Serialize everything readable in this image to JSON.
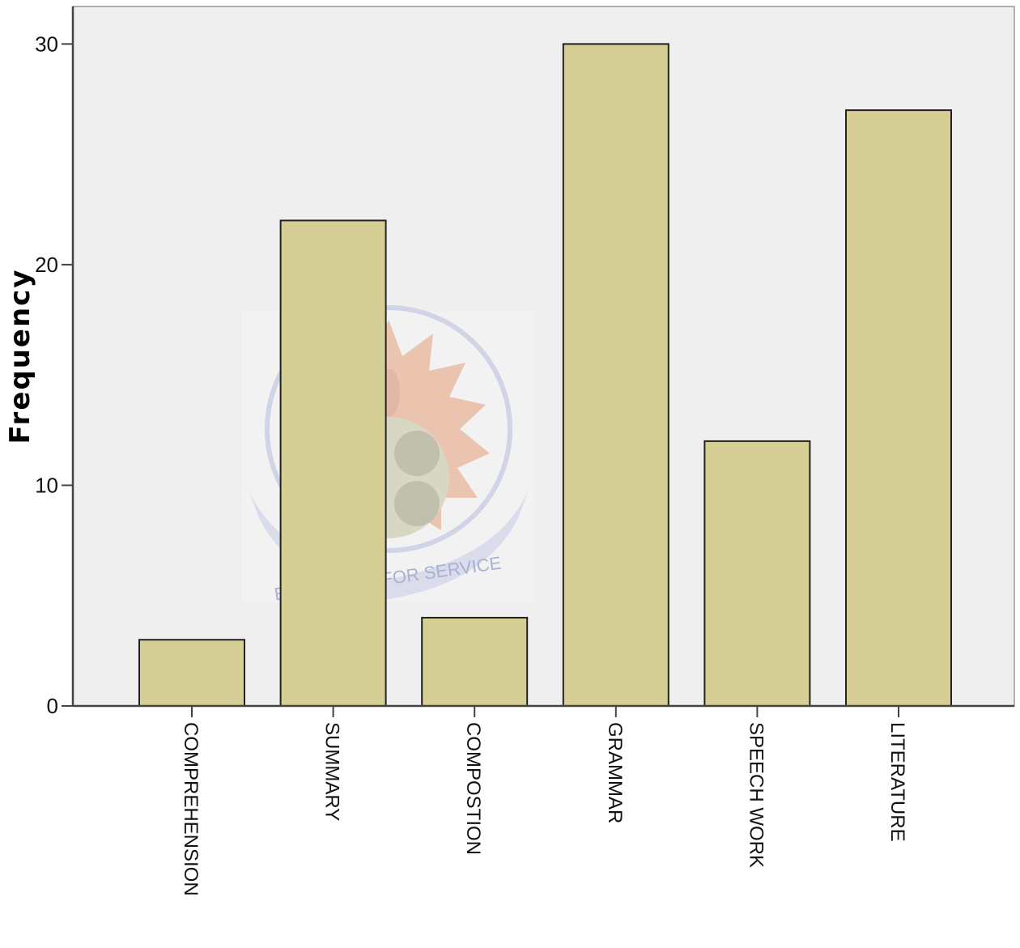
{
  "chart_data": {
    "type": "bar",
    "title": "",
    "xlabel": "",
    "ylabel": "Frequency",
    "categories": [
      "COMPREHENSION",
      "SUMMARY",
      "COMPOSTION",
      "GRAMMAR",
      "SPEECH WORK",
      "LITERATURE"
    ],
    "values": [
      3,
      22,
      4,
      30,
      12,
      27
    ],
    "ylim": [
      0,
      31.7
    ],
    "yticks": [
      0,
      10,
      20,
      30
    ],
    "grid": false,
    "legend": "none",
    "colors": {
      "bar_fill": "#d5cf96",
      "bar_stroke": "#222222",
      "plot_background": "#efefef",
      "axis": "#444444"
    }
  },
  "watermark": {
    "icon": "university-seal-icon",
    "motto": "EDUCATION FOR SERVICE"
  }
}
